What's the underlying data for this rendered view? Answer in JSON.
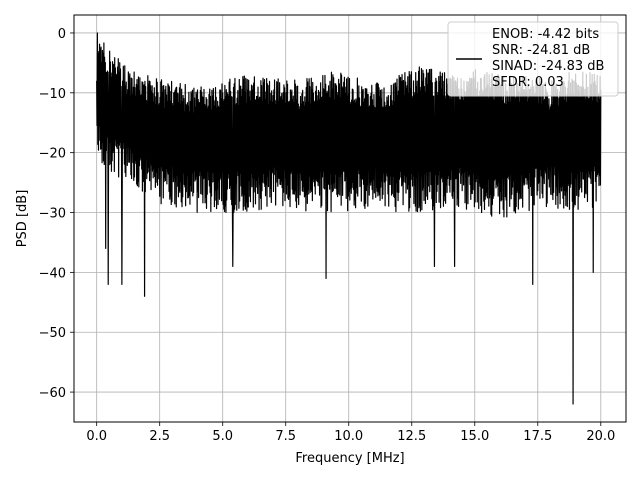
{
  "chart_data": {
    "type": "line",
    "title": "",
    "xlabel": "Frequency [MHz]",
    "ylabel": "PSD [dB]",
    "xlim": [
      -0.9,
      21.0
    ],
    "ylim": [
      -65.0,
      3.0
    ],
    "x_ticks": [
      0.0,
      2.5,
      5.0,
      7.5,
      10.0,
      12.5,
      15.0,
      17.5,
      20.0
    ],
    "x_tick_labels": [
      "0.0",
      "2.5",
      "5.0",
      "7.5",
      "10.0",
      "12.5",
      "15.0",
      "17.5",
      "20.0"
    ],
    "y_ticks": [
      0,
      -10,
      -20,
      -30,
      -40,
      -50,
      -60
    ],
    "y_tick_labels": [
      "0",
      "−10",
      "−20",
      "−30",
      "−40",
      "−50",
      "−60"
    ],
    "grid": true,
    "legend_position": "upper-right",
    "series": [
      {
        "color": "#000000",
        "x_range": [
          0.0,
          20.0
        ],
        "envelope_upper": [
          0.0,
          -5,
          -7,
          -8,
          -9,
          -8,
          -7,
          -7,
          -8,
          -6,
          -7,
          -8,
          -7,
          -5,
          -7,
          -6,
          -7,
          -7,
          -8,
          -6,
          -7
        ],
        "envelope_lower": [
          -22,
          -25,
          -28,
          -29,
          -30,
          -30,
          -30,
          -29,
          -30,
          -30,
          -30,
          -29,
          -30,
          -30,
          -29,
          -30,
          -31,
          -30,
          -29,
          -30,
          -29
        ],
        "notable_minima": [
          {
            "x": 0.35,
            "y": -36
          },
          {
            "x": 0.45,
            "y": -42
          },
          {
            "x": 1.0,
            "y": -42
          },
          {
            "x": 1.9,
            "y": -44
          },
          {
            "x": 5.4,
            "y": -39
          },
          {
            "x": 9.1,
            "y": -41
          },
          {
            "x": 13.4,
            "y": -39
          },
          {
            "x": 14.2,
            "y": -39
          },
          {
            "x": 17.3,
            "y": -42
          },
          {
            "x": 18.9,
            "y": -62
          },
          {
            "x": 19.7,
            "y": -40
          }
        ]
      }
    ],
    "legend": {
      "lines": [
        "ENOB: -4.42 bits",
        "SNR: -24.81 dB",
        "SINAD: -24.83 dB",
        "SFDR: 0.03"
      ]
    }
  }
}
